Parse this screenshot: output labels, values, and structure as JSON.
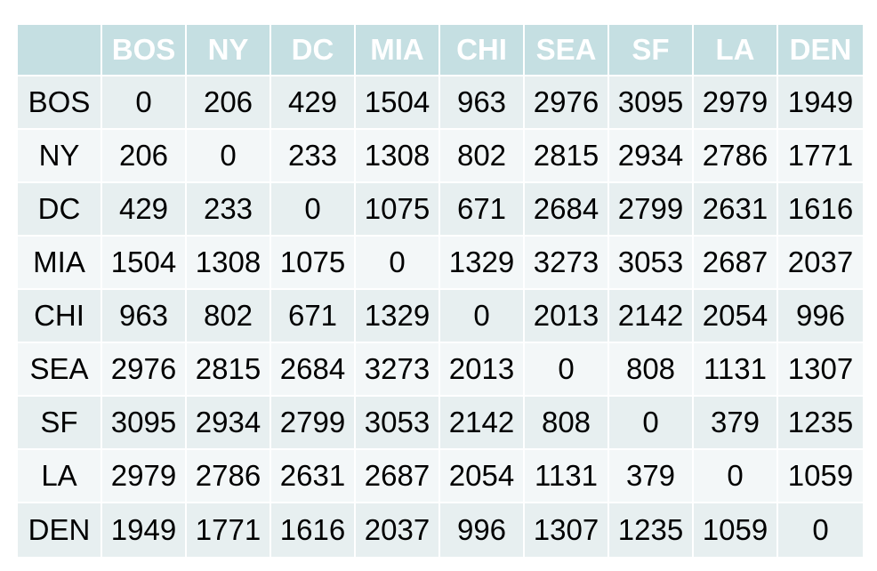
{
  "chart_data": {
    "type": "table",
    "columns": [
      "",
      "BOS",
      "NY",
      "DC",
      "MIA",
      "CHI",
      "SEA",
      "SF",
      "LA",
      "DEN"
    ],
    "rows": [
      [
        "BOS",
        "0",
        "206",
        "429",
        "1504",
        "963",
        "2976",
        "3095",
        "2979",
        "1949"
      ],
      [
        "NY",
        "206",
        "0",
        "233",
        "1308",
        "802",
        "2815",
        "2934",
        "2786",
        "1771"
      ],
      [
        "DC",
        "429",
        "233",
        "0",
        "1075",
        "671",
        "2684",
        "2799",
        "2631",
        "1616"
      ],
      [
        "MIA",
        "1504",
        "1308",
        "1075",
        "0",
        "1329",
        "3273",
        "3053",
        "2687",
        "2037"
      ],
      [
        "CHI",
        "963",
        "802",
        "671",
        "1329",
        "0",
        "2013",
        "2142",
        "2054",
        "996"
      ],
      [
        "SEA",
        "2976",
        "2815",
        "2684",
        "3273",
        "2013",
        "0",
        "808",
        "1131",
        "1307"
      ],
      [
        "SF",
        "3095",
        "2934",
        "2799",
        "3053",
        "2142",
        "808",
        "0",
        "379",
        "1235"
      ],
      [
        "LA",
        "2979",
        "2786",
        "2631",
        "2687",
        "2054",
        "1131",
        "379",
        "0",
        "1059"
      ],
      [
        "DEN",
        "1949",
        "1771",
        "1616",
        "2037",
        "996",
        "1307",
        "1235",
        "1059",
        "0"
      ]
    ]
  },
  "colors": {
    "header_background": "#c5dfe2",
    "header_text": "#ffffff",
    "row_band_a": "#e7eff0",
    "row_band_b": "#f3f7f8",
    "cell_text": "#000000"
  }
}
